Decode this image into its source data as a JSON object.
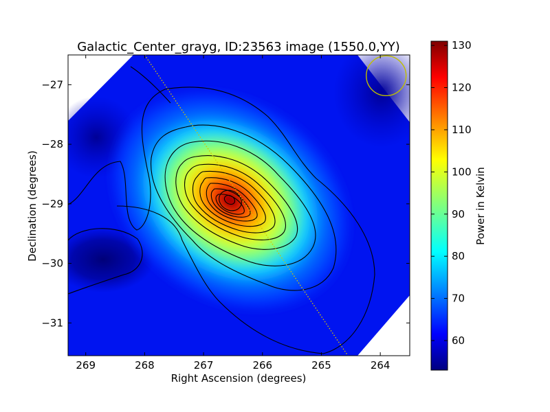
{
  "chart_data": {
    "type": "heatmap",
    "title": "Galactic_Center_grayg, ID:23563 image (1550.0,YY)",
    "xlabel": "Right Ascension (degrees)",
    "ylabel": "Declination (degrees)",
    "xlim": [
      269.3,
      263.5
    ],
    "ylim": [
      -31.55,
      -26.5
    ],
    "x_ticks": [
      269,
      268,
      267,
      266,
      265,
      264
    ],
    "y_ticks": [
      -27,
      -28,
      -29,
      -30,
      -31
    ],
    "x_tick_labels": [
      "269",
      "268",
      "267",
      "266",
      "265",
      "264"
    ],
    "y_tick_labels": [
      "−27",
      "−28",
      "−29",
      "−30",
      "−31"
    ],
    "colormap": "jet",
    "colorbar": {
      "label": "Power in Kelvin",
      "range": [
        53,
        131
      ],
      "ticks": [
        60,
        70,
        80,
        90,
        100,
        110,
        120,
        130
      ],
      "tick_labels": [
        "60",
        "70",
        "80",
        "90",
        "100",
        "110",
        "120",
        "130"
      ]
    },
    "peak": {
      "ra": 266.45,
      "dec": -28.9,
      "value": 131
    },
    "background_value": 59,
    "contours": "black contour lines of Power in Kelvin",
    "beam_circle": {
      "ra": 263.9,
      "dec": -26.85,
      "color": "#bfbf00"
    },
    "dotted_line": {
      "points": [
        [
          268.0,
          -26.5
        ],
        [
          264.55,
          -31.55
        ]
      ],
      "color": "#d4c400"
    },
    "grid": false,
    "legend": "none"
  }
}
